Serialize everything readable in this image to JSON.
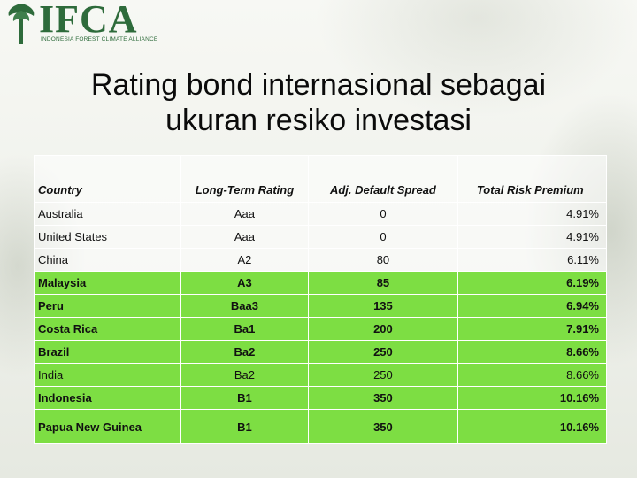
{
  "logo": {
    "text": "IFCA",
    "subtitle": "INDONESIA FOREST CLIMATE ALLIANCE"
  },
  "title": {
    "line1": "Rating bond internasional sebagai",
    "line2": "ukuran resiko investasi"
  },
  "table": {
    "headers": [
      "Country",
      "Long-Term Rating",
      "Adj. Default Spread",
      "Total Risk Premium"
    ],
    "rows": [
      {
        "country": "Australia",
        "rating": "Aaa",
        "spread": "0",
        "premium": "4.91%"
      },
      {
        "country": "United States",
        "rating": "Aaa",
        "spread": "0",
        "premium": "4.91%"
      },
      {
        "country": "China",
        "rating": "A2",
        "spread": "80",
        "premium": "6.11%"
      },
      {
        "country": "Malaysia",
        "rating": "A3",
        "spread": "85",
        "premium": "6.19%"
      },
      {
        "country": "Peru",
        "rating": "Baa3",
        "spread": "135",
        "premium": "6.94%"
      },
      {
        "country": "Costa Rica",
        "rating": "Ba1",
        "spread": "200",
        "premium": "7.91%"
      },
      {
        "country": "Brazil",
        "rating": "Ba2",
        "spread": "250",
        "premium": "8.66%"
      },
      {
        "country": "India",
        "rating": "Ba2",
        "spread": "250",
        "premium": "8.66%"
      },
      {
        "country": "Indonesia",
        "rating": "B1",
        "spread": "350",
        "premium": "10.16%"
      },
      {
        "country": "Papua New Guinea",
        "rating": "B1",
        "spread": "350",
        "premium": "10.16%"
      }
    ]
  },
  "colors": {
    "highlight": "#7dde43",
    "logo": "#2e6b3b"
  }
}
